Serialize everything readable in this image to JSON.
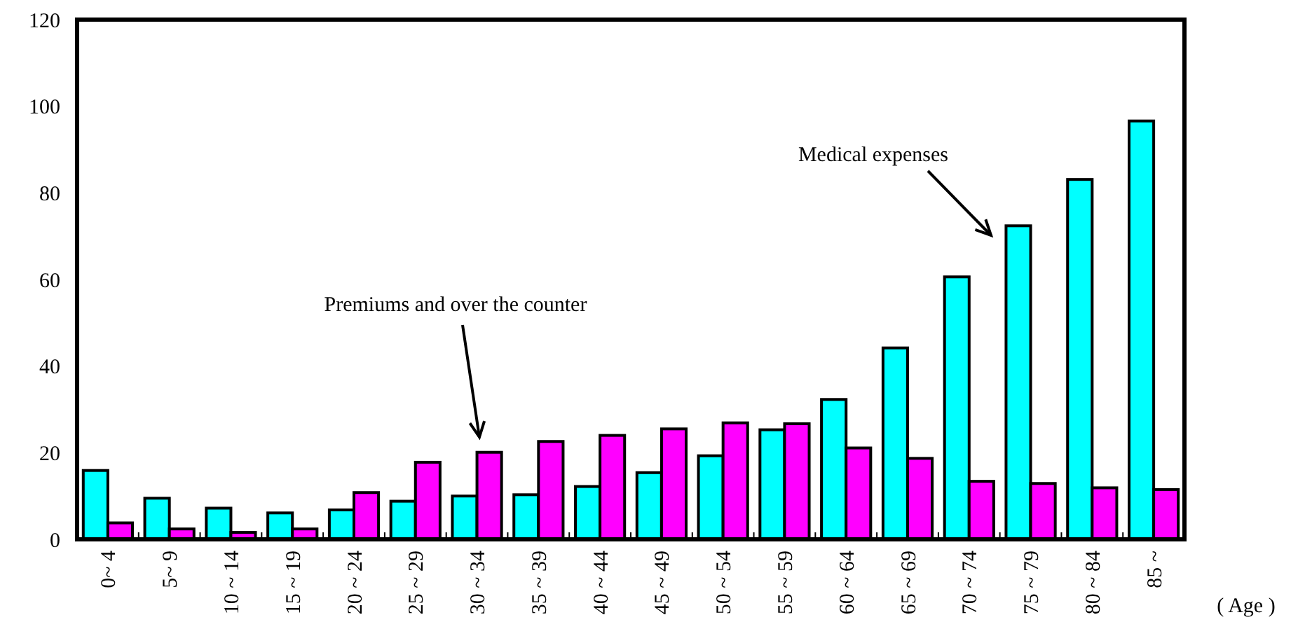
{
  "chart_data": {
    "type": "bar",
    "xlabel": "( Age )",
    "categories": [
      "0~ 4",
      "5~ 9",
      "10 ~ 14",
      "15 ~ 19",
      "20 ~ 24",
      "25 ~ 29",
      "30 ~ 34",
      "35 ~ 39",
      "40 ~ 44",
      "45 ~ 49",
      "50 ~ 54",
      "55 ~ 59",
      "60 ~ 64",
      "65 ~ 69",
      "70 ~ 74",
      "75 ~ 79",
      "80 ~ 84",
      "85 ~"
    ],
    "series": [
      {
        "color": "#00ffff",
        "values": [
          15.9,
          9.5,
          7.2,
          6.1,
          6.8,
          8.8,
          10.0,
          10.3,
          12.2,
          15.4,
          19.3,
          25.3,
          32.3,
          44.2,
          60.6,
          72.4,
          83.1,
          96.6
        ]
      },
      {
        "color": "#ff00ff",
        "values": [
          3.8,
          2.4,
          1.6,
          2.4,
          10.8,
          17.8,
          20.1,
          22.6,
          24.0,
          25.5,
          26.9,
          26.7,
          21.1,
          18.7,
          13.4,
          12.9,
          11.9,
          11.5
        ]
      }
    ],
    "ylim": [
      0,
      120
    ],
    "yticks": [
      0,
      20,
      40,
      60,
      80,
      100,
      120
    ],
    "grid": false,
    "annotations": [
      "Premiums and over the counter",
      "Medical expenses"
    ]
  }
}
